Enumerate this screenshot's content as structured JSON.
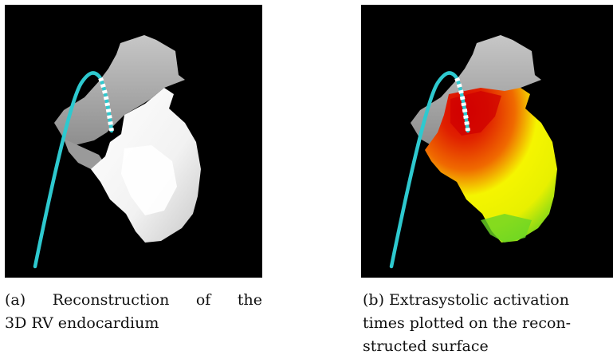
{
  "figure": {
    "subfigures": [
      {
        "id": "a",
        "caption_lines": [
          "(a) Reconstruction of the",
          "3D RV endocardium"
        ]
      },
      {
        "id": "b",
        "caption_lines": [
          "(b) Extrasystolic activation",
          "times plotted on the recon-",
          "structed surface"
        ]
      }
    ],
    "colors": {
      "background": "#000000",
      "catheter": "#2ec9cf",
      "surface": "#f2f2f2",
      "early_activation": "#d90000",
      "mid_activation": "#f5f500",
      "late_activation": "#60d020"
    }
  }
}
